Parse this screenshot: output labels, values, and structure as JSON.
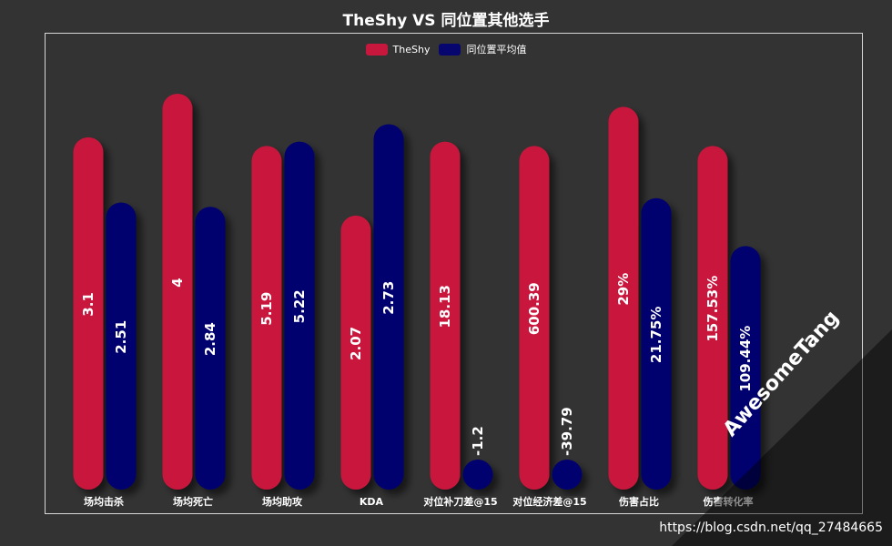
{
  "chart_data": {
    "type": "bar",
    "title": "TheShy VS 同位置其他选手",
    "categories": [
      "场均击杀",
      "场均死亡",
      "场均助攻",
      "KDA",
      "对位补刀差@15",
      "对位经济差@15",
      "伤害占比",
      "伤害转化率"
    ],
    "series": [
      {
        "name": "TheShy",
        "color": "#C8173C",
        "labels": [
          "3.1",
          "4",
          "5.19",
          "2.07",
          "18.13",
          "600.39",
          "29%",
          "157.53%"
        ],
        "bar_level": [
          0.81,
          0.91,
          0.79,
          0.63,
          0.8,
          0.79,
          0.88,
          0.79
        ]
      },
      {
        "name": "同位置平均值",
        "color": "#06066E",
        "labels": [
          "2.51",
          "2.84",
          "5.22",
          "2.73",
          "-1.2",
          "-39.79",
          "21.75%",
          "109.44%"
        ],
        "bar_level": [
          0.66,
          0.65,
          0.8,
          0.84,
          0.06,
          0.06,
          0.67,
          0.56
        ]
      }
    ],
    "legend_position": "top-center",
    "grid": false
  },
  "watermark": {
    "text": "AwesomeTang",
    "source": "https://blog.csdn.net/qq_27484665"
  }
}
